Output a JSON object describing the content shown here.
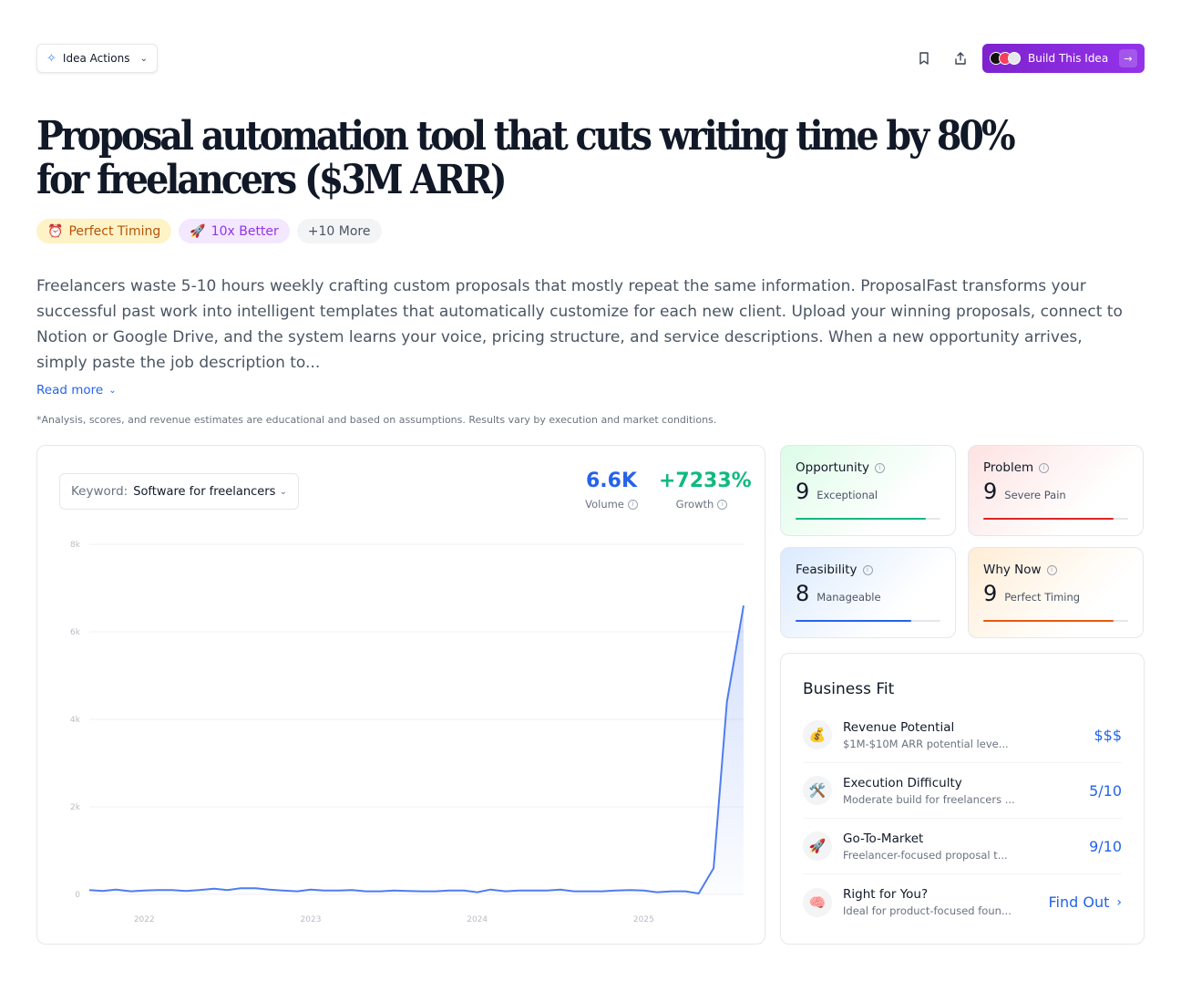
{
  "topbar": {
    "idea_actions_label": "Idea Actions",
    "build_label": "Build This Idea"
  },
  "title": "Proposal automation tool that cuts writing time by 80% for freelancers ($3M ARR)",
  "tags": [
    {
      "emoji": "⏰",
      "label": "Perfect Timing"
    },
    {
      "emoji": "🚀",
      "label": "10x Better"
    },
    {
      "emoji": "",
      "label": "+10 More"
    }
  ],
  "description": "Freelancers waste 5-10 hours weekly crafting custom proposals that mostly repeat the same information. ProposalFast transforms your successful past work into intelligent templates that automatically customize for each new client. Upload your winning proposals, connect to Notion or Google Drive, and the system learns your voice, pricing structure, and service descriptions. When a new opportunity arrives, simply paste the job description to...",
  "read_more": "Read more",
  "disclaimer": "*Analysis, scores, and revenue estimates are educational and based on assumptions. Results vary by execution and market conditions.",
  "keyword": {
    "label": "Keyword:",
    "value": "Software for freelancers"
  },
  "stats": {
    "volume_value": "6.6K",
    "volume_label": "Volume",
    "growth_value": "+7233%",
    "growth_label": "Growth"
  },
  "colors": {
    "accent": "#2563eb",
    "growth": "#10b981",
    "line": "#4f7df0"
  },
  "chart_data": {
    "type": "area",
    "y_ticks": [
      "0",
      "2k",
      "4k",
      "6k",
      "8k"
    ],
    "ylim": [
      0,
      8000
    ],
    "x_ticks": [
      {
        "label": "2022",
        "x": 2022.0
      },
      {
        "label": "2023",
        "x": 2023.0
      },
      {
        "label": "2024",
        "x": 2024.0
      },
      {
        "label": "2025",
        "x": 2025.0
      }
    ],
    "xlim": [
      2021.67,
      2025.6
    ],
    "series": [
      {
        "x": [
          2021.67,
          2021.75,
          2021.83,
          2021.92,
          2022.0,
          2022.08,
          2022.17,
          2022.25,
          2022.33,
          2022.42,
          2022.5,
          2022.58,
          2022.67,
          2022.75,
          2022.83,
          2022.92,
          2023.0,
          2023.08,
          2023.17,
          2023.25,
          2023.33,
          2023.42,
          2023.5,
          2023.58,
          2023.67,
          2023.75,
          2023.83,
          2023.92,
          2024.0,
          2024.08,
          2024.17,
          2024.25,
          2024.33,
          2024.42,
          2024.5,
          2024.58,
          2024.67,
          2024.75,
          2024.83,
          2024.92,
          2025.0,
          2025.08,
          2025.17,
          2025.25,
          2025.33,
          2025.42,
          2025.5,
          2025.6
        ],
        "y": [
          100,
          80,
          110,
          70,
          90,
          100,
          100,
          80,
          100,
          130,
          100,
          140,
          140,
          110,
          90,
          70,
          110,
          90,
          90,
          100,
          70,
          70,
          90,
          80,
          70,
          70,
          90,
          90,
          50,
          110,
          70,
          90,
          90,
          90,
          110,
          70,
          70,
          70,
          90,
          100,
          90,
          50,
          70,
          70,
          20,
          600,
          4400,
          6600
        ]
      }
    ]
  },
  "scores": [
    {
      "title": "Opportunity",
      "value": "9",
      "sub": "Exceptional",
      "level": 0.9
    },
    {
      "title": "Problem",
      "value": "9",
      "sub": "Severe Pain",
      "level": 0.9
    },
    {
      "title": "Feasibility",
      "value": "8",
      "sub": "Manageable",
      "level": 0.8
    },
    {
      "title": "Why Now",
      "value": "9",
      "sub": "Perfect Timing",
      "level": 0.9
    }
  ],
  "business_fit": {
    "title": "Business Fit",
    "rows": [
      {
        "emoji": "💰",
        "title": "Revenue Potential",
        "sub": "$1M-$10M ARR potential leve...",
        "value": "$$$"
      },
      {
        "emoji": "🛠️",
        "title": "Execution Difficulty",
        "sub": "Moderate build for freelancers ...",
        "value": "5/10"
      },
      {
        "emoji": "🚀",
        "title": "Go-To-Market",
        "sub": "Freelancer-focused proposal t...",
        "value": "9/10"
      },
      {
        "emoji": "🧠",
        "title": "Right for You?",
        "sub": "Ideal for product-focused foun...",
        "value": "Find Out"
      }
    ]
  }
}
